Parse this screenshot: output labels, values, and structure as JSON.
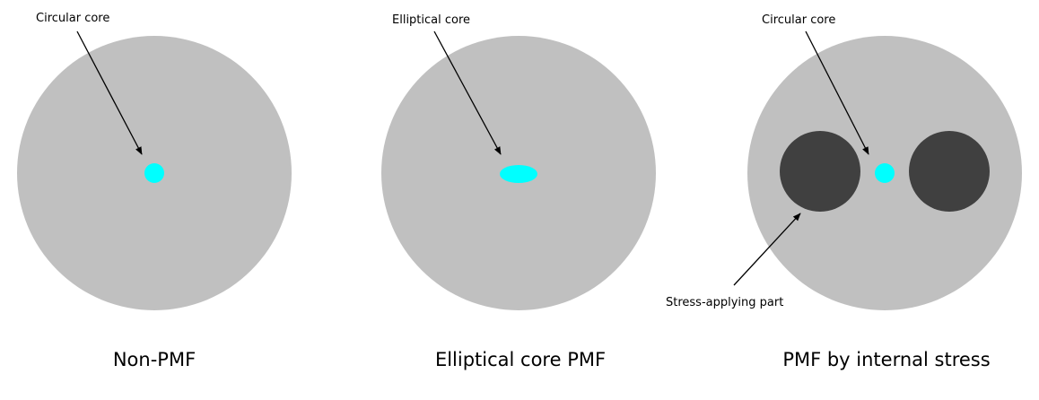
{
  "colors": {
    "cladding": "#c0c0c0",
    "core": "#00ffff",
    "stress_part": "#404040",
    "arrow": "#000000"
  },
  "panels": [
    {
      "id": "non-pmf",
      "core_label": "Circular core",
      "caption": "Non-PMF"
    },
    {
      "id": "elliptical-core-pmf",
      "core_label": "Elliptical core",
      "caption": "Elliptical core PMF"
    },
    {
      "id": "pmf-internal-stress",
      "core_label": "Circular core",
      "stress_label": "Stress-applying part",
      "caption": "PMF by internal stress"
    }
  ]
}
